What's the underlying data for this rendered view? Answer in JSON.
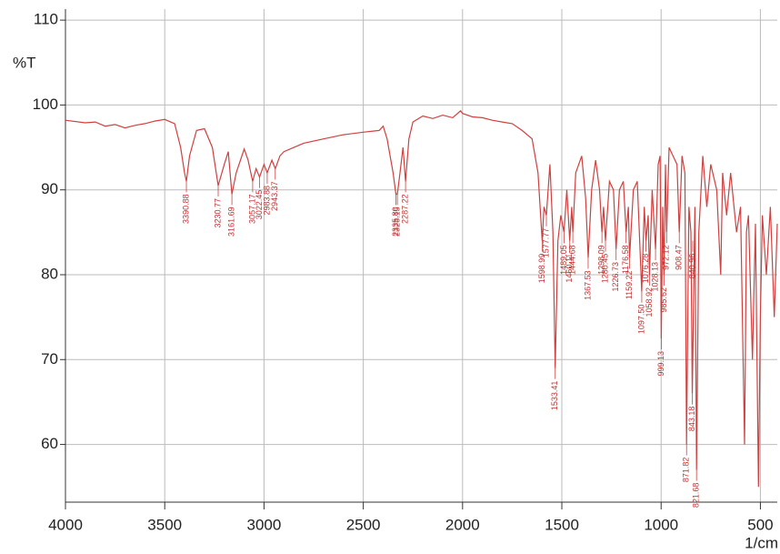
{
  "chart_data": {
    "type": "line",
    "y_label": "%T",
    "x_label": "1/cm",
    "color": "#d0403f",
    "grid": true,
    "xlim": [
      4000,
      415
    ],
    "ylim": [
      53.2,
      111.3
    ],
    "xticks": [
      4000,
      3500,
      3000,
      2500,
      2000,
      1500,
      1000,
      500
    ],
    "yticks": [
      60,
      70,
      80,
      90,
      100,
      110
    ],
    "x": [
      4000,
      3900,
      3850,
      3800,
      3750,
      3700,
      3650,
      3600,
      3550,
      3500,
      3450,
      3420,
      3400,
      3390.88,
      3375,
      3340,
      3300,
      3260,
      3230.77,
      3200,
      3180,
      3161.69,
      3140,
      3100,
      3080,
      3057.17,
      3040,
      3022.45,
      3000,
      2983.88,
      2960,
      2943.37,
      2920,
      2900,
      2850,
      2800,
      2700,
      2600,
      2500,
      2420,
      2400,
      2380,
      2350,
      2335.8,
      2328.15,
      2315,
      2300,
      2287.22,
      2270,
      2250,
      2200,
      2150,
      2100,
      2050,
      2010,
      2000,
      1950,
      1900,
      1850,
      1800,
      1750,
      1700,
      1650,
      1620,
      1598.99,
      1590,
      1577.77,
      1560,
      1545,
      1533.41,
      1520,
      1505,
      1489.05,
      1475,
      1460.11,
      1450,
      1444.68,
      1430,
      1400,
      1380,
      1367.53,
      1350,
      1330,
      1310,
      1298.09,
      1290,
      1280.45,
      1260,
      1240,
      1226.73,
      1210,
      1190,
      1176.58,
      1165,
      1159.22,
      1140,
      1120,
      1097.5,
      1085,
      1076.28,
      1065,
      1058.92,
      1045,
      1028.13,
      1015,
      1005,
      999.13,
      992,
      985.62,
      978,
      972.12,
      960,
      940,
      920,
      908.47,
      895,
      880,
      871.82,
      860,
      850,
      843.18,
      830,
      821.68,
      810,
      790,
      770,
      750,
      720,
      700,
      690,
      670,
      650,
      620,
      600,
      580,
      570,
      560,
      540,
      525,
      510,
      500,
      490,
      470,
      450,
      430,
      415
    ],
    "values": [
      98.2,
      97.9,
      98,
      97.5,
      97.7,
      97.3,
      97.6,
      97.8,
      98.1,
      98.3,
      97.8,
      95,
      92,
      91,
      94,
      97,
      97.2,
      95,
      90.5,
      93,
      94.5,
      89.5,
      92,
      94.8,
      93.5,
      91,
      92.5,
      91.5,
      93,
      92,
      93.5,
      92.5,
      94,
      94.5,
      95,
      95.5,
      96,
      96.5,
      96.8,
      97,
      97.5,
      96,
      92,
      89.5,
      89.5,
      92,
      95,
      91,
      96,
      98,
      98.7,
      98.4,
      98.8,
      98.5,
      99.3,
      99,
      98.6,
      98.5,
      98.2,
      98,
      97.8,
      97,
      96,
      92,
      84,
      88,
      87,
      93,
      85,
      69,
      84,
      87,
      85,
      90,
      84,
      88,
      85,
      92,
      94,
      89,
      82,
      90,
      93.5,
      90,
      85,
      88,
      84,
      91,
      90,
      83,
      90,
      91,
      85,
      88,
      82,
      90,
      91,
      78,
      88,
      84,
      87,
      80,
      90,
      83,
      93,
      94,
      72.5,
      88,
      80,
      93,
      85,
      95,
      94,
      93,
      85,
      94,
      92,
      60,
      88,
      85,
      66,
      88,
      57,
      85,
      94,
      88,
      93,
      90,
      80,
      92,
      87,
      92,
      85,
      88,
      60,
      85,
      87,
      70,
      86,
      55,
      75,
      87,
      80,
      88,
      75,
      86
    ],
    "peaks": [
      {
        "x": 3390.88,
        "y": 91,
        "label": "3390.88"
      },
      {
        "x": 3230.77,
        "y": 90.5,
        "label": "3230.77"
      },
      {
        "x": 3161.69,
        "y": 89.5,
        "label": "3161.69"
      },
      {
        "x": 3057.17,
        "y": 91,
        "label": "3057.17"
      },
      {
        "x": 3022.45,
        "y": 91.5,
        "label": "3022.45"
      },
      {
        "x": 2983.88,
        "y": 92,
        "label": "2983.88"
      },
      {
        "x": 2943.37,
        "y": 92.5,
        "label": "2943.37"
      },
      {
        "x": 2335.8,
        "y": 89.5,
        "label": "2335.80"
      },
      {
        "x": 2328.15,
        "y": 89.5,
        "label": "2328.15"
      },
      {
        "x": 2287.22,
        "y": 91,
        "label": "2287.22"
      },
      {
        "x": 1598.99,
        "y": 84,
        "label": "1598.99"
      },
      {
        "x": 1577.77,
        "y": 87,
        "label": "1577.77"
      },
      {
        "x": 1533.41,
        "y": 69,
        "label": "1533.41"
      },
      {
        "x": 1489.05,
        "y": 85,
        "label": "1489.05"
      },
      {
        "x": 1460.11,
        "y": 84,
        "label": "1460.11"
      },
      {
        "x": 1444.68,
        "y": 85,
        "label": "1444.68"
      },
      {
        "x": 1367.53,
        "y": 82,
        "label": "1367.53"
      },
      {
        "x": 1298.09,
        "y": 85,
        "label": "1298.09"
      },
      {
        "x": 1280.45,
        "y": 84,
        "label": "1280.45"
      },
      {
        "x": 1226.73,
        "y": 83,
        "label": "1226.73"
      },
      {
        "x": 1176.58,
        "y": 85,
        "label": "1176.58"
      },
      {
        "x": 1159.22,
        "y": 82,
        "label": "1159.22"
      },
      {
        "x": 1097.5,
        "y": 78,
        "label": "1097.50"
      },
      {
        "x": 1076.28,
        "y": 84,
        "label": "1076.28"
      },
      {
        "x": 1058.92,
        "y": 80,
        "label": "1058.92"
      },
      {
        "x": 1028.13,
        "y": 83,
        "label": "1028.13"
      },
      {
        "x": 999.13,
        "y": 72.5,
        "label": "999.13"
      },
      {
        "x": 985.62,
        "y": 80,
        "label": "985.62"
      },
      {
        "x": 972.12,
        "y": 85,
        "label": "972.12"
      },
      {
        "x": 908.47,
        "y": 85,
        "label": "908.47"
      },
      {
        "x": 871.82,
        "y": 60,
        "label": "871.82"
      },
      {
        "x": 843.18,
        "y": 66,
        "label": "843.18"
      },
      {
        "x": 840.96,
        "y": 84,
        "label": "840.96"
      },
      {
        "x": 821.68,
        "y": 57,
        "label": "821.68"
      }
    ]
  }
}
